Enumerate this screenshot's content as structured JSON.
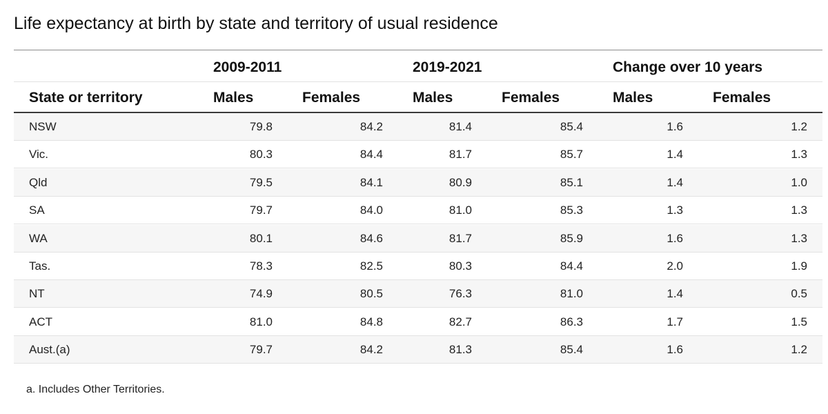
{
  "title": "Life expectancy at birth by state and territory of usual residence",
  "groups": [
    "2009-2011",
    "2019-2021",
    "Change over 10 years"
  ],
  "columns": [
    "State or territory",
    "Males",
    "Females",
    "Males",
    "Females",
    "Males",
    "Females"
  ],
  "rows": [
    {
      "state": "NSW",
      "values": [
        "79.8",
        "84.2",
        "81.4",
        "85.4",
        "1.6",
        "1.2"
      ]
    },
    {
      "state": "Vic.",
      "values": [
        "80.3",
        "84.4",
        "81.7",
        "85.7",
        "1.4",
        "1.3"
      ]
    },
    {
      "state": "Qld",
      "values": [
        "79.5",
        "84.1",
        "80.9",
        "85.1",
        "1.4",
        "1.0"
      ]
    },
    {
      "state": "SA",
      "values": [
        "79.7",
        "84.0",
        "81.0",
        "85.3",
        "1.3",
        "1.3"
      ]
    },
    {
      "state": "WA",
      "values": [
        "80.1",
        "84.6",
        "81.7",
        "85.9",
        "1.6",
        "1.3"
      ]
    },
    {
      "state": "Tas.",
      "values": [
        "78.3",
        "82.5",
        "80.3",
        "84.4",
        "2.0",
        "1.9"
      ]
    },
    {
      "state": "NT",
      "values": [
        "74.9",
        "80.5",
        "76.3",
        "81.0",
        "1.4",
        "0.5"
      ]
    },
    {
      "state": "ACT",
      "values": [
        "81.0",
        "84.8",
        "82.7",
        "86.3",
        "1.7",
        "1.5"
      ]
    },
    {
      "state": "Aust.(a)",
      "values": [
        "79.7",
        "84.2",
        "81.3",
        "85.4",
        "1.6",
        "1.2"
      ]
    }
  ],
  "footnote": "a. Includes Other Territories.",
  "colors": {
    "header_rule": "#3a3a3a",
    "row_alt_bg": "#f6f6f6",
    "grid_line": "#e2e2e2"
  }
}
